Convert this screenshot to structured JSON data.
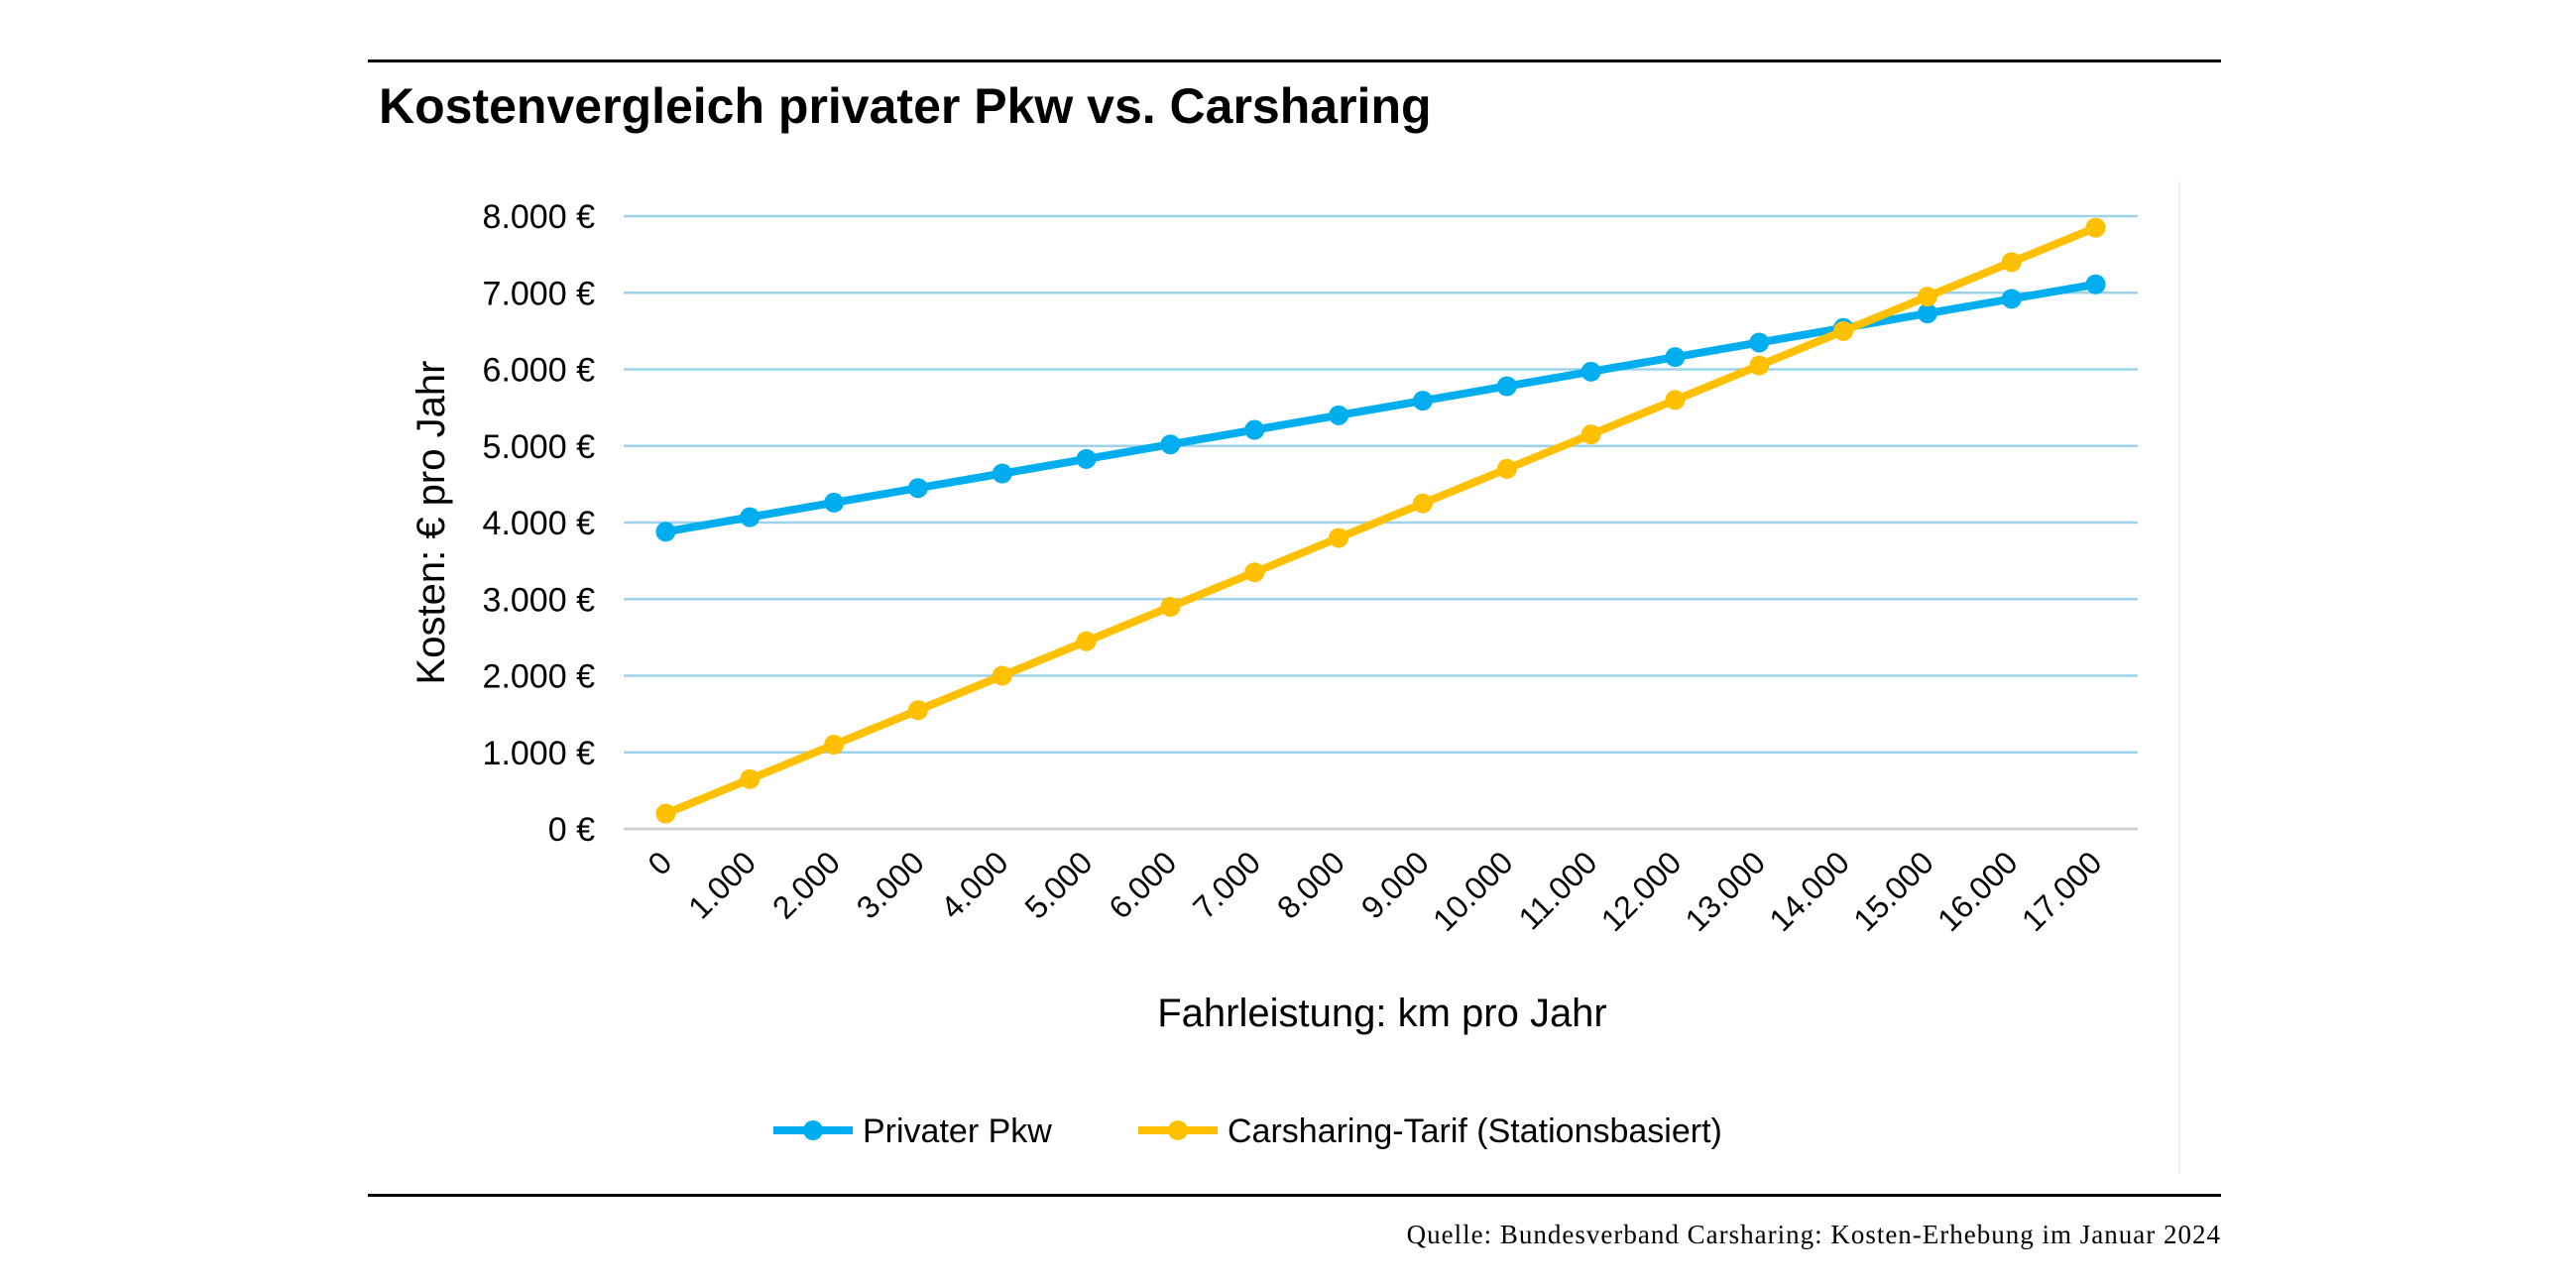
{
  "title": "Kostenvergleich privater Pkw vs. Carsharing",
  "source": "Quelle: Bundesverband Carsharing: Kosten-Erhebung im Januar 2024",
  "chart_data": {
    "type": "line",
    "title": "Kostenvergleich privater Pkw vs. Carsharing",
    "xlabel": "Fahrleistung: km pro Jahr",
    "ylabel": "Kosten: € pro Jahr",
    "ylim": [
      0,
      8000
    ],
    "grid": true,
    "legend_position": "bottom",
    "categories": [
      "0",
      "1.000",
      "2.000",
      "3.000",
      "4.000",
      "5.000",
      "6.000",
      "7.000",
      "8.000",
      "9.000",
      "10.000",
      "11.000",
      "12.000",
      "13.000",
      "14.000",
      "15.000",
      "16.000",
      "17.000"
    ],
    "y_ticks": [
      "0 €",
      "1.000 €",
      "2.000 €",
      "3.000 €",
      "4.000 €",
      "5.000 €",
      "6.000 €",
      "7.000 €",
      "8.000 €"
    ],
    "series": [
      {
        "name": "Privater Pkw",
        "color": "#00AEEF",
        "values": [
          3880,
          4070,
          4260,
          4450,
          4640,
          4830,
          5020,
          5210,
          5400,
          5590,
          5780,
          5970,
          6160,
          6350,
          6540,
          6730,
          6920,
          7110
        ]
      },
      {
        "name": "Carsharing-Tarif (Stationsbasiert)",
        "color": "#FFC000",
        "values": [
          200,
          650,
          1100,
          1550,
          2000,
          2450,
          2900,
          3350,
          3800,
          4250,
          4700,
          5150,
          5600,
          6050,
          6500,
          6950,
          7400,
          7850
        ]
      }
    ]
  }
}
